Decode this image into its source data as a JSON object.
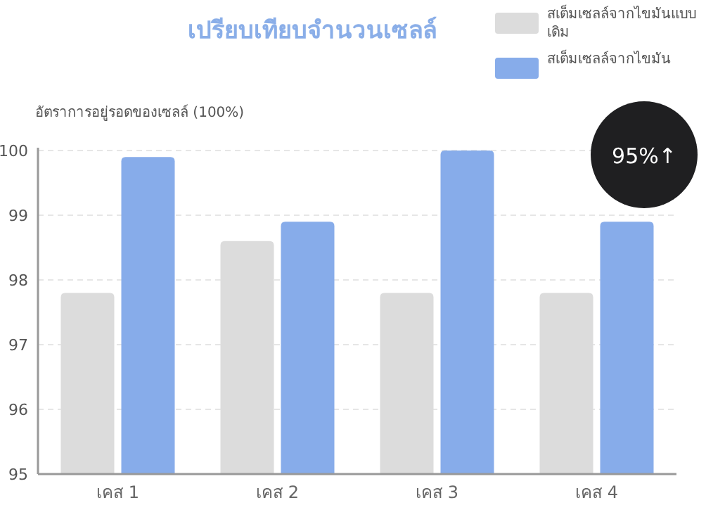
{
  "chart_data": {
    "type": "bar",
    "title": "เปรียบเทียบจำนวนเซลล์",
    "ylabel": "อัตราการอยู่รอดของเซลล์ (100%)",
    "categories": [
      "เคส 1",
      "เคส 2",
      "เคส 3",
      "เคส 4"
    ],
    "series": [
      {
        "name": "สเต็มเซลล์จากไขมันแบบเดิม",
        "color": "#dcdcdc",
        "values": [
          97.8,
          98.6,
          97.8,
          97.8
        ]
      },
      {
        "name": "สเต็มเซลล์จากไขมัน",
        "color": "#87acea",
        "values": [
          99.9,
          98.9,
          100,
          98.9
        ]
      }
    ],
    "ylim": [
      95,
      100
    ],
    "yticks": [
      95,
      96,
      97,
      98,
      99,
      100
    ],
    "grid": "y",
    "legend": "top right",
    "annotations": [
      "95%↑"
    ]
  }
}
